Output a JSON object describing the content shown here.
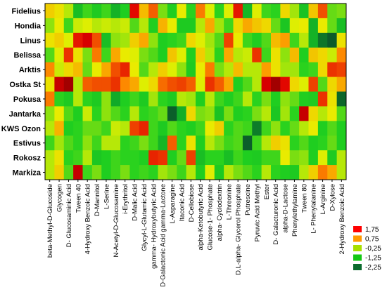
{
  "chart_data": {
    "type": "heatmap",
    "title": "",
    "xlabel": "",
    "ylabel": "",
    "rows": [
      "Fidelius",
      "Hondia",
      "Linus",
      "Belissa",
      "Arktis",
      "Ostka St",
      "Pokusa",
      "Jantarka",
      "KWS Ozon",
      "Estivus",
      "Rokosz",
      "Markiza"
    ],
    "columns": [
      "beta-Methyl-D-Glucoside",
      "Glycogen",
      "D- Glucosaminic Acid",
      "Tween 40",
      "4-Hydroxy Benzoic Acid",
      "D-Mannitol",
      "L-Serine",
      "N-Acetyl-D-Glucosamine",
      "i-Erythritol",
      "D-Malic Acid",
      "Glycyl-L-Glutamic Acid",
      "gamma- Hydroxybutyric Acid",
      "D-Galactonic Acid gamma-Lactone",
      "L-Asparagine",
      "Itaconic Acid",
      "D-Cellobiose",
      "alpha-Ketobutyric Acid",
      "Glucose-1- Phosphate",
      "alpha- Cyclodextrin",
      "L-Threonine",
      "D,L-alpha- Glycerol Phosphate",
      "Putrescine",
      "Pyruvic Acid Methyl",
      "Ester",
      "D- Galacturonic Acid",
      "alpha-D-Lactose",
      "Phenylethylamine",
      "Tween 80",
      "L- Phenylalanine",
      "L-Arginine",
      "D-Xylose",
      "2-Hydroxy Benzoic Acid"
    ],
    "values": [
      [
        0.6,
        0.4,
        0.0,
        -1.2,
        -0.6,
        -0.9,
        -0.6,
        -1.5,
        -0.8,
        2.2,
        0.8,
        1.6,
        -0.3,
        -0.8,
        0.3,
        -0.7,
        1.4,
        0.2,
        -0.7,
        0.2,
        2.1,
        -1.4,
        0.2,
        -0.6,
        -0.7,
        0.5,
        -0.1,
        -1.1,
        0.7,
        1.7,
        -0.4,
        -0.3
      ],
      [
        -0.2,
        0.3,
        -0.6,
        0.1,
        0.2,
        0.0,
        0.1,
        0.0,
        0.1,
        -0.5,
        0.0,
        -0.8,
        0.9,
        0.3,
        -0.9,
        -0.9,
        0.0,
        1.0,
        -0.1,
        -0.6,
        0.5,
        1.0,
        0.7,
        0.5,
        -0.4,
        -1.0,
        0.2,
        0.3,
        -1.5,
        0.3,
        -0.4,
        -1.2
      ],
      [
        0.4,
        0.6,
        0.2,
        2.1,
        2.3,
        1.7,
        -1.2,
        -0.2,
        -0.1,
        0.6,
        1.0,
        -0.2,
        -0.8,
        -0.7,
        -0.6,
        0.5,
        0.2,
        -0.1,
        -0.5,
        1.8,
        0.3,
        -0.6,
        -0.8,
        -0.5,
        0.8,
        1.1,
        -0.6,
        0.0,
        -1.5,
        -2.4,
        -2.8,
        0.4
      ],
      [
        -0.5,
        0.2,
        1.9,
        0.4,
        -0.3,
        1.4,
        -0.6,
        1.0,
        0.3,
        0.2,
        -0.3,
        -0.5,
        -0.8,
        0.7,
        0.2,
        -0.8,
        0.6,
        0.0,
        -0.7,
        1.0,
        0.0,
        0.1,
        1.9,
        -0.6,
        0.4,
        -0.2,
        0.8,
        -0.8,
        0.7,
        0.5,
        0.1,
        1.3
      ],
      [
        1.3,
        0.1,
        0.5,
        0.8,
        -0.4,
        0.3,
        1.0,
        1.7,
        2.0,
        0.3,
        -0.5,
        0.0,
        0.6,
        0.2,
        -0.2,
        -0.9,
        0.3,
        1.4,
        -0.3,
        0.0,
        0.8,
        0.0,
        0.0,
        1.1,
        0.4,
        -0.1,
        -0.1,
        -0.7,
        -0.6,
        0.5,
        1.9,
        1.8
      ],
      [
        0.4,
        2.4,
        2.6,
        0.0,
        1.6,
        1.7,
        1.7,
        1.9,
        1.3,
        1.0,
        0.2,
        0.5,
        1.5,
        1.7,
        1.8,
        1.6,
        0.2,
        1.9,
        1.6,
        1.0,
        -0.8,
        -0.5,
        0.0,
        2.3,
        2.6,
        2.2,
        0.5,
        0.2,
        1.8,
        -0.5,
        0.5,
        1.0
      ],
      [
        1.4,
        -0.7,
        -0.9,
        0.0,
        -0.7,
        -0.9,
        -0.2,
        -1.7,
        -0.8,
        -0.6,
        -0.9,
        -0.1,
        -0.7,
        -0.9,
        0.0,
        -0.1,
        -0.8,
        0.0,
        -0.6,
        -0.8,
        -0.6,
        0.0,
        -0.7,
        -0.3,
        -0.8,
        -0.2,
        -0.4,
        -0.8,
        -0.9,
        1.9,
        0.4,
        -2.6
      ],
      [
        -0.2,
        0.3,
        -0.5,
        -0.8,
        0.1,
        -0.7,
        -0.2,
        -0.5,
        -0.7,
        0.0,
        -0.7,
        -0.6,
        -0.4,
        -2.7,
        -1.6,
        0.5,
        -0.3,
        -0.2,
        -1.1,
        -0.3,
        -0.8,
        -0.7,
        -0.3,
        0.0,
        -1.0,
        -0.1,
        -0.7,
        2.4,
        0.5,
        0.0,
        0.3,
        -0.5
      ],
      [
        0.0,
        0.9,
        -0.8,
        -0.7,
        -0.4,
        -0.4,
        -0.6,
        0.1,
        0.0,
        1.8,
        2.0,
        -0.6,
        -0.9,
        -0.5,
        -0.7,
        -0.8,
        -0.6,
        0.3,
        0.6,
        -0.7,
        -0.5,
        -0.6,
        -2.3,
        -0.6,
        -0.2,
        -0.7,
        -0.4,
        0.0,
        0.3,
        -0.8,
        -0.5,
        -0.8
      ],
      [
        -0.6,
        -0.1,
        -0.5,
        -0.7,
        -0.2,
        -0.6,
        0.0,
        0.0,
        -0.7,
        -0.6,
        -0.3,
        -0.6,
        -1.4,
        1.6,
        -0.7,
        0.4,
        -0.8,
        0.0,
        -0.3,
        -0.6,
        -0.5,
        -2.7,
        -0.6,
        0.0,
        0.6,
        0.4,
        -0.7,
        -0.5,
        -0.8,
        -0.7,
        -0.4,
        -0.8
      ],
      [
        0.0,
        0.4,
        -0.7,
        -0.6,
        0.0,
        -1.0,
        -0.8,
        -0.6,
        -0.7,
        -0.7,
        -0.8,
        2.0,
        1.9,
        -0.8,
        -0.4,
        1.8,
        -1.2,
        -0.7,
        -0.7,
        -1.2,
        -0.6,
        -0.8,
        -0.9,
        -0.6,
        -0.6,
        0.3,
        -0.3,
        -0.2,
        -0.8,
        0.2,
        -0.9,
        0.0
      ],
      [
        0.0,
        0.6,
        -0.5,
        2.4,
        -0.6,
        -0.3,
        -0.8,
        -0.6,
        -0.3,
        -0.7,
        -0.6,
        -0.7,
        -0.1,
        -0.3,
        -0.6,
        0.0,
        -0.8,
        0.2,
        -0.9,
        0.0,
        -0.3,
        -0.5,
        -0.7,
        0.0,
        -0.7,
        -0.8,
        -0.9,
        0.0,
        0.6,
        1.4,
        1.0,
        0.0
      ]
    ],
    "legend": {
      "placement": "bottom-right",
      "entries": [
        "1,75",
        "0,75",
        "-0,25",
        "-1,25",
        "-2,25"
      ],
      "colors": [
        "#ff0000",
        "#ff9900",
        "#a8e000",
        "#14c814",
        "#0b6b2d"
      ]
    },
    "color_scale": {
      "stops": [
        {
          "value": -2.75,
          "color": "#0b5a2a"
        },
        {
          "value": -1.75,
          "color": "#10a828"
        },
        {
          "value": -0.75,
          "color": "#20d020"
        },
        {
          "value": 0.25,
          "color": "#e8f000"
        },
        {
          "value": 1.25,
          "color": "#ff9000"
        },
        {
          "value": 2.25,
          "color": "#e00000"
        },
        {
          "value": 2.75,
          "color": "#880000"
        }
      ]
    },
    "grid": false
  }
}
